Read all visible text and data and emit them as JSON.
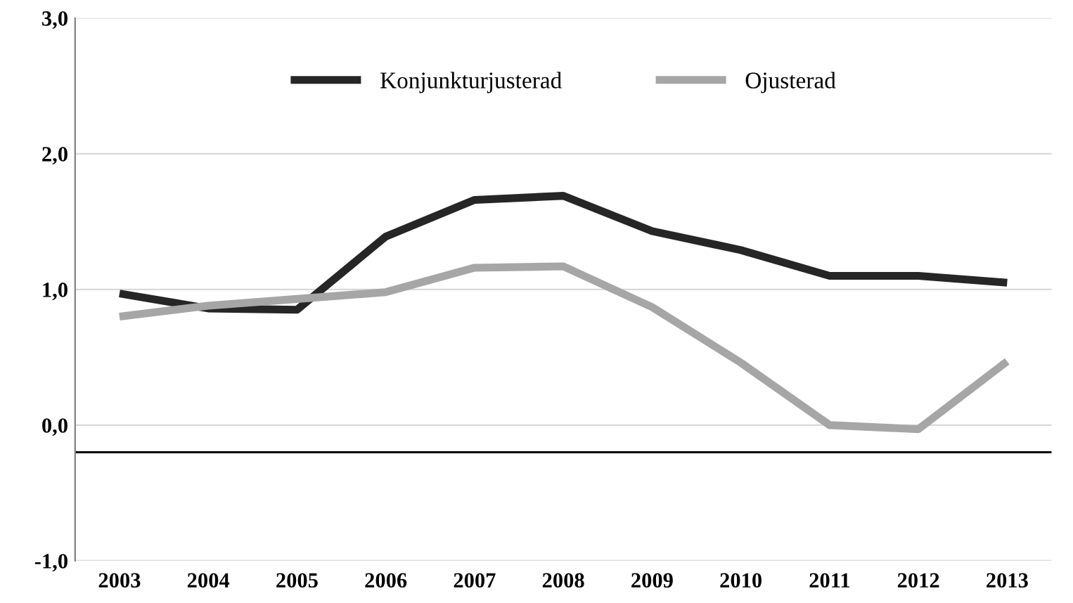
{
  "chart_data": {
    "type": "line",
    "categories": [
      "2003",
      "2004",
      "2005",
      "2006",
      "2007",
      "2008",
      "2009",
      "2010",
      "2011",
      "2012",
      "2013"
    ],
    "series": [
      {
        "name": "Konjunkturjusterad",
        "color": "#262626",
        "values": [
          0.97,
          0.86,
          0.85,
          1.39,
          1.66,
          1.69,
          1.43,
          1.29,
          1.1,
          1.1,
          1.05
        ]
      },
      {
        "name": "Ojusterad",
        "color": "#a6a6a6",
        "values": [
          0.8,
          0.88,
          0.93,
          0.98,
          1.16,
          1.17,
          0.87,
          0.46,
          0.0,
          -0.03,
          0.47
        ]
      }
    ],
    "ylim": [
      -1,
      3
    ],
    "yticks": [
      {
        "value": -1,
        "label": "-1,0"
      },
      {
        "value": 0,
        "label": "0,0"
      },
      {
        "value": 1,
        "label": "1,0"
      },
      {
        "value": 2,
        "label": "2,0"
      },
      {
        "value": 3,
        "label": "3,0"
      }
    ],
    "ref_lines": [
      {
        "axis": "y",
        "value": -0.2,
        "color": "#000000"
      }
    ],
    "grid": "y",
    "legend": "top",
    "marker": "none",
    "line_style": "solid"
  }
}
